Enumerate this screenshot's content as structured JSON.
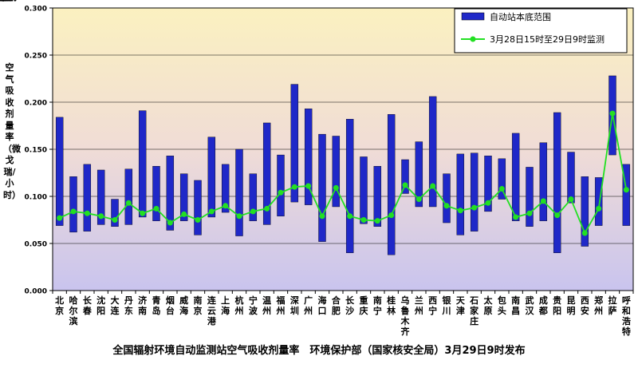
{
  "chart_data": {
    "type": "bar",
    "title": "全国辐射环境自动监测站空气吸收剂量率　环境保护部（国家核安全局）3月29日9时发布",
    "ylabel": "空气吸收剂量率（微戈瑞/小时）",
    "xlabel": "",
    "ylim": [
      0,
      0.3
    ],
    "yticks": [
      "0.000",
      "0.050",
      "0.100",
      "0.150",
      "0.200",
      "0.250",
      "0.300"
    ],
    "grid": true,
    "legend_position": "top-right",
    "colors": {
      "bar": "#1f28c8",
      "line": "#22e022"
    },
    "categories": [
      "北京",
      "哈尔滨",
      "长春",
      "沈阳",
      "大连",
      "丹东",
      "济南",
      "青岛",
      "烟台",
      "威海",
      "南京",
      "连云港",
      "上海",
      "杭州",
      "宁波",
      "温州",
      "福州",
      "深圳",
      "广州",
      "海口",
      "合肥",
      "长沙",
      "重庆",
      "南宁",
      "桂林",
      "乌鲁木齐",
      "兰州",
      "西宁",
      "银川",
      "天津",
      "石家庄",
      "太原",
      "包头",
      "南昌",
      "武汉",
      "成都",
      "贵阳",
      "昆明",
      "西安",
      "郑州",
      "拉萨",
      "呼和浩特"
    ],
    "series": [
      {
        "name": "自动站本底范围",
        "type": "range-bar",
        "low": [
          0.069,
          0.062,
          0.063,
          0.07,
          0.068,
          0.07,
          0.078,
          0.074,
          0.064,
          0.074,
          0.059,
          0.078,
          0.083,
          0.058,
          0.074,
          0.07,
          0.079,
          0.094,
          0.091,
          0.052,
          0.089,
          0.04,
          0.071,
          0.068,
          0.038,
          0.103,
          0.089,
          0.089,
          0.072,
          0.059,
          0.063,
          0.084,
          0.097,
          0.074,
          0.068,
          0.074,
          0.04,
          0.093,
          0.047,
          0.069,
          0.144,
          0.069
        ],
        "high": [
          0.184,
          0.121,
          0.134,
          0.128,
          0.097,
          0.129,
          0.191,
          0.132,
          0.143,
          0.124,
          0.117,
          0.163,
          0.134,
          0.15,
          0.124,
          0.178,
          0.144,
          0.219,
          0.193,
          0.166,
          0.164,
          0.182,
          0.142,
          0.132,
          0.187,
          0.139,
          0.158,
          0.206,
          0.124,
          0.145,
          0.146,
          0.143,
          0.14,
          0.167,
          0.131,
          0.157,
          0.189,
          0.147,
          0.121,
          0.12,
          0.228,
          0.134
        ]
      },
      {
        "name": "3月28日15时至29日9时监测",
        "type": "line",
        "values": [
          0.077,
          0.084,
          0.082,
          0.079,
          0.075,
          0.093,
          0.082,
          0.087,
          0.072,
          0.081,
          0.075,
          0.084,
          0.09,
          0.079,
          0.084,
          0.087,
          0.104,
          0.11,
          0.111,
          0.079,
          0.109,
          0.079,
          0.075,
          0.074,
          0.08,
          0.112,
          0.097,
          0.111,
          0.09,
          0.085,
          0.088,
          0.093,
          0.108,
          0.078,
          0.082,
          0.095,
          0.08,
          0.097,
          0.061,
          0.087,
          0.188,
          0.107
        ]
      }
    ]
  }
}
